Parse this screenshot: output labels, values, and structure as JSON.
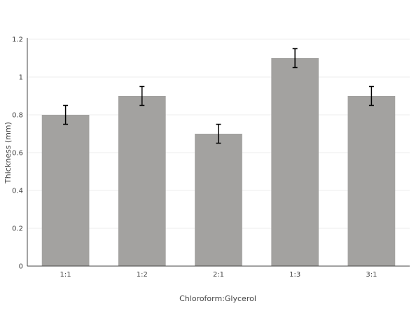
{
  "chart_data": {
    "type": "bar",
    "title": "",
    "xlabel": "Chloroform:Glycerol",
    "ylabel": "Thickness (mm)",
    "categories": [
      "1:1",
      "1:2",
      "2:1",
      "1:3",
      "3:1"
    ],
    "values": [
      0.8,
      0.9,
      0.7,
      1.1,
      0.9
    ],
    "error": [
      0.05,
      0.05,
      0.05,
      0.05,
      0.05
    ],
    "ylim": [
      0,
      1.2
    ],
    "yticks": [
      0,
      0.2,
      0.4,
      0.6,
      0.8,
      1,
      1.2
    ],
    "ytick_labels": [
      "0",
      "0.2",
      "0.4",
      "0.6",
      "0.8",
      "1",
      "1.2"
    ],
    "grid": true,
    "legend": "none",
    "colors": {
      "bar": "#a3a2a0",
      "error_bar": "#000000",
      "grid": "#eeeeee",
      "axis": "#444444"
    }
  }
}
